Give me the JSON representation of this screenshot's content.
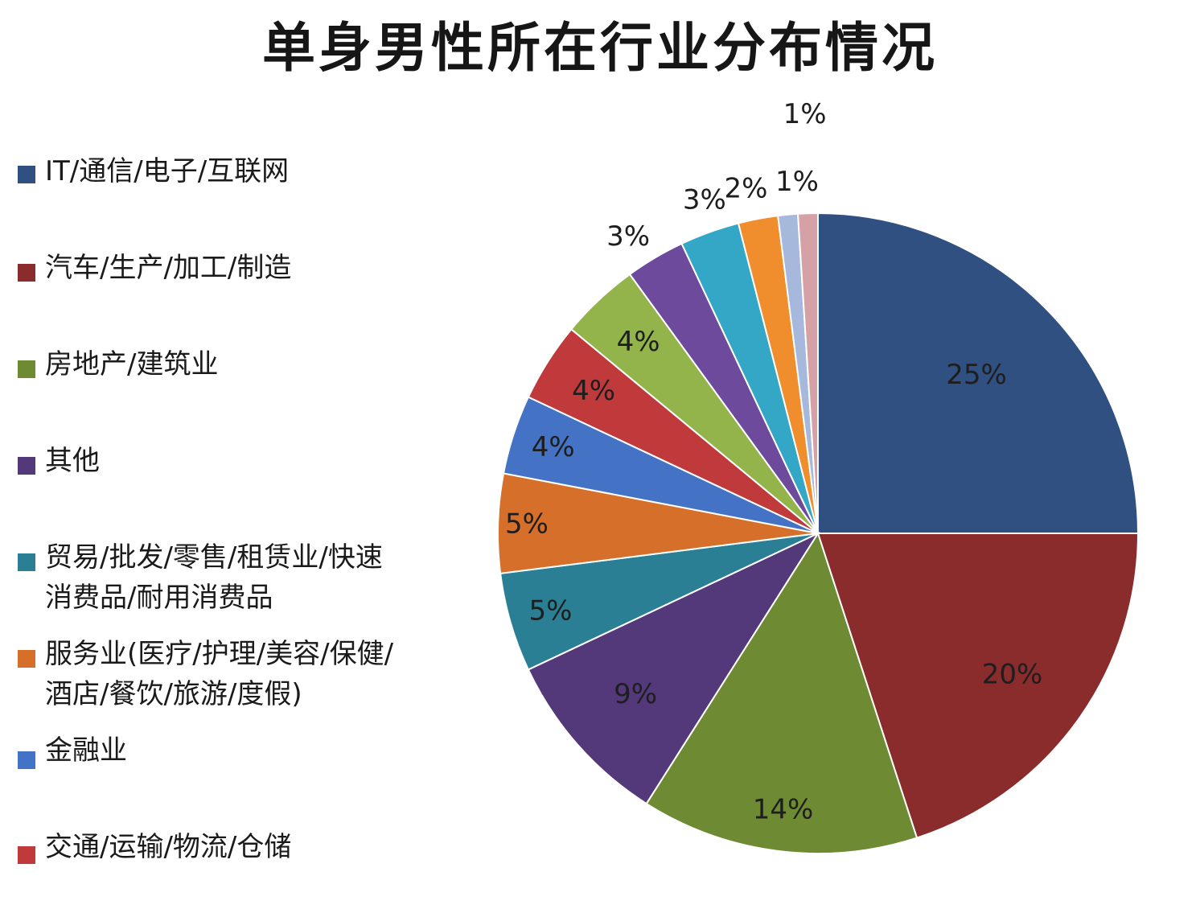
{
  "chart_data": {
    "type": "pie",
    "title": "单身男性所在行业分布情况",
    "legend_position": "left",
    "slices": [
      {
        "name": "IT/通信/电子/互联网",
        "value": 25,
        "label": "25%",
        "color": "#2f5080"
      },
      {
        "name": "汽车/生产/加工/制造",
        "value": 20,
        "label": "20%",
        "color": "#8a2c2c"
      },
      {
        "name": "房地产/建筑业",
        "value": 14,
        "label": "14%",
        "color": "#6e8a33"
      },
      {
        "name": "其他",
        "value": 9,
        "label": "9%",
        "color": "#53397a"
      },
      {
        "name": "贸易/批发/零售/租赁业/快速消费品/耐用消费品",
        "value": 5,
        "label": "5%",
        "color": "#2a7f95"
      },
      {
        "name": "服务业(医疗/护理/美容/保健/酒店/餐饮/旅游/度假)",
        "value": 5,
        "label": "5%",
        "color": "#d66f29"
      },
      {
        "name": "金融业",
        "value": 4,
        "label": "4%",
        "color": "#4472c4"
      },
      {
        "name": "交通/运输/物流/仓储",
        "value": 4,
        "label": "4%",
        "color": "#c0393b"
      },
      {
        "name": "",
        "value": 4,
        "label": "4%",
        "color": "#93b34b"
      },
      {
        "name": "",
        "value": 3,
        "label": "3%",
        "color": "#6d4a9c"
      },
      {
        "name": "",
        "value": 3,
        "label": "3%",
        "color": "#34a7c7"
      },
      {
        "name": "",
        "value": 2,
        "label": "2%",
        "color": "#f08d2d"
      },
      {
        "name": "",
        "value": 1,
        "label": "1%",
        "color": "#a6b8dc"
      },
      {
        "name": "",
        "value": 1,
        "label": "1%",
        "color": "#d6a1a6"
      }
    ]
  }
}
